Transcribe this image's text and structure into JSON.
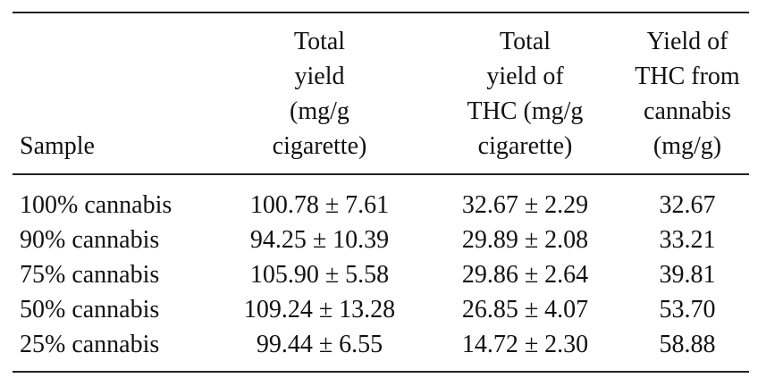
{
  "table": {
    "header": [
      [
        "Sample"
      ],
      [
        "Total",
        "yield",
        "(mg/g",
        "cigarette)"
      ],
      [
        "Total",
        "yield of",
        "THC (mg/g",
        "cigarette)"
      ],
      [
        "Yield of",
        "THC from",
        "cannabis",
        "(mg/g)"
      ]
    ],
    "rows": [
      [
        "100% cannabis",
        "100.78 ± 7.61",
        "32.67 ± 2.29",
        "32.67"
      ],
      [
        "90% cannabis",
        "94.25 ± 10.39",
        "29.89 ± 2.08",
        "33.21"
      ],
      [
        "75% cannabis",
        "105.90 ± 5.58",
        "29.86 ± 2.64",
        "39.81"
      ],
      [
        "50% cannabis",
        "109.24 ± 13.28",
        "26.85 ± 4.07",
        "53.70"
      ],
      [
        "25% cannabis",
        "99.44 ± 6.55",
        "14.72 ± 2.30",
        "58.88"
      ]
    ]
  }
}
